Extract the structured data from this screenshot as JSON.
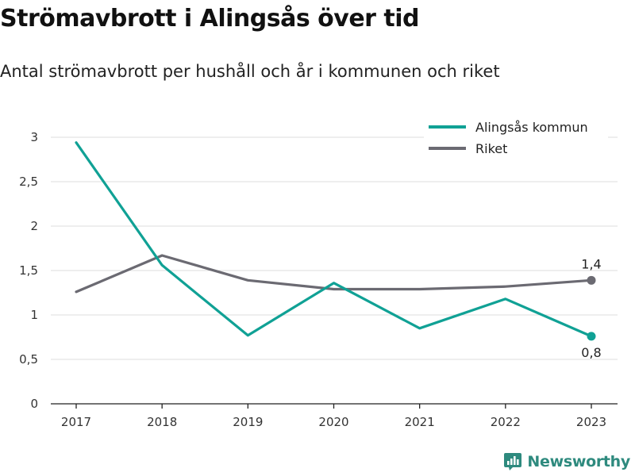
{
  "title": "Strömavbrott i Alingsås över tid",
  "subtitle": "Antal strömavbrott per hushåll och år i kommunen och riket",
  "brand": {
    "name": "Newsworthy",
    "icon": "newsworthy-logo-icon",
    "color": "#2e8a7e"
  },
  "chart_data": {
    "type": "line",
    "title": "Strömavbrott i Alingsås över tid",
    "subtitle": "Antal strömavbrott per hushåll och år i kommunen och riket",
    "xlabel": "",
    "ylabel": "",
    "x": [
      "2017",
      "2018",
      "2019",
      "2020",
      "2021",
      "2022",
      "2023"
    ],
    "ylim": [
      0,
      3
    ],
    "yticks": [
      0,
      0.5,
      1,
      1.5,
      2,
      2.5,
      3
    ],
    "ytick_labels": [
      "0",
      "0,5",
      "1",
      "1,5",
      "2",
      "2,5",
      "3"
    ],
    "grid": true,
    "legend_position": "top-right",
    "series": [
      {
        "name": "Alingsås kommun",
        "color": "#10a195",
        "values": [
          2.94,
          1.56,
          0.77,
          1.36,
          0.85,
          1.18,
          0.76
        ],
        "end_label": "0,8"
      },
      {
        "name": "Riket",
        "color": "#6b6a72",
        "values": [
          1.26,
          1.67,
          1.39,
          1.29,
          1.29,
          1.32,
          1.39
        ],
        "end_label": "1,4"
      }
    ]
  }
}
